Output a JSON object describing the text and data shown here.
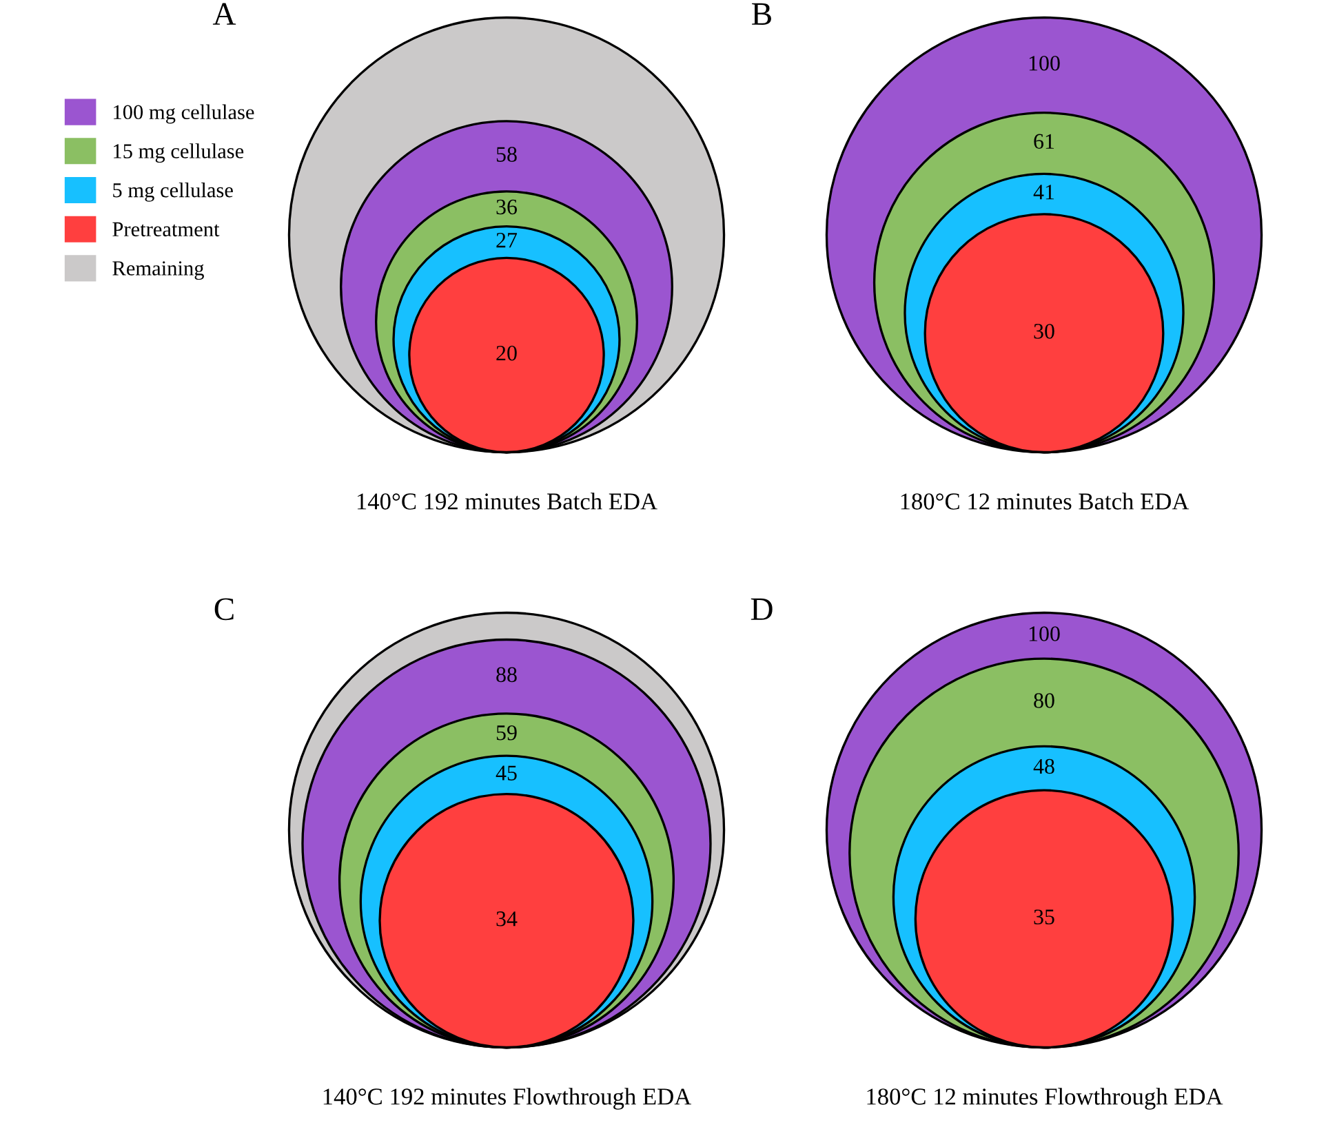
{
  "chart_data": [
    {
      "type": "other",
      "title": "A",
      "xlabel": "140°C 192 minutes Batch EDA",
      "data_labels": true,
      "categories": [
        "100 mg cellulase",
        "15 mg cellulase",
        "5 mg cellulase",
        "Pretreatment",
        "Remaining"
      ],
      "values": [
        58,
        36,
        27,
        20,
        null
      ],
      "colors": [
        "#9b55d0",
        "#8bbf63",
        "#17c0ff",
        "#ff3f3f",
        "#cbc9c9"
      ]
    },
    {
      "type": "other",
      "title": "B",
      "xlabel": "180°C 12 minutes Batch EDA",
      "data_labels": true,
      "categories": [
        null,
        null,
        null,
        null
      ],
      "values": [
        100,
        61,
        41,
        30
      ],
      "colors": [
        "#9b55d0",
        "#8bbf63",
        "#17c0ff",
        "#ff3f3f"
      ]
    },
    {
      "type": "other",
      "title": "C",
      "xlabel": "140°C 192 minutes Flowthrough EDA",
      "data_labels": true,
      "categories": [
        null,
        null,
        null,
        null,
        null
      ],
      "values": [
        88,
        59,
        45,
        34,
        null
      ],
      "colors": [
        "#9b55d0",
        "#8bbf63",
        "#17c0ff",
        "#ff3f3f",
        "#cbc9c9"
      ]
    },
    {
      "type": "other",
      "title": "D",
      "xlabel": "180°C 12 minutes Flowthrough EDA",
      "data_labels": true,
      "categories": [
        null,
        null,
        null,
        null
      ],
      "values": [
        100,
        80,
        48,
        35
      ],
      "colors": [
        "#9b55d0",
        "#8bbf63",
        "#17c0ff",
        "#ff3f3f"
      ]
    }
  ]
}
